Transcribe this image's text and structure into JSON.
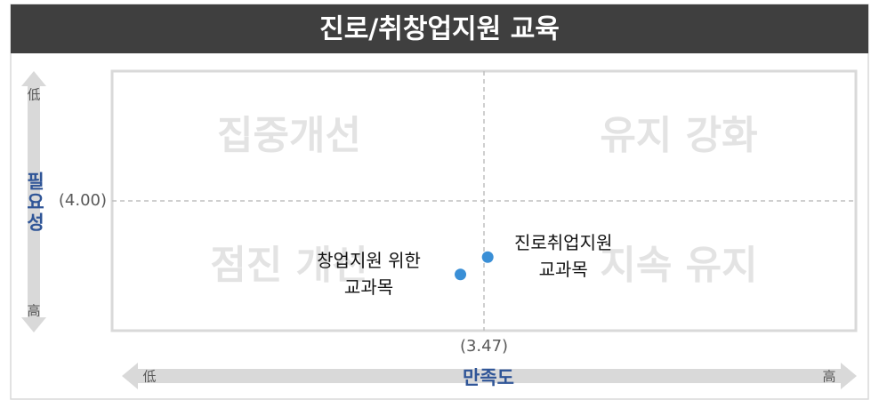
{
  "chart_data": {
    "type": "quadrant_scatter",
    "title": "진로/취창업지원 교육",
    "x_label": "만족도",
    "y_label": "필요성",
    "x_low": "低",
    "x_high": "高",
    "y_low": "低",
    "y_high": "高",
    "y_direction": "down",
    "xlim": [
      3.17,
      3.77
    ],
    "ylim": [
      3.7,
      4.3
    ],
    "x_ref": {
      "value": 3.47,
      "label": "(3.47)"
    },
    "y_ref": {
      "value": 4.0,
      "label": "(4.00)"
    },
    "quadrants": [
      {
        "name": "집중개선",
        "corner": "top-left"
      },
      {
        "name": "유지 강화",
        "corner": "top-right"
      },
      {
        "name": "점진 개선",
        "corner": "bottom-left"
      },
      {
        "name": "지속 유지",
        "corner": "bottom-right"
      }
    ],
    "color": "#3a8fd6",
    "points": [
      {
        "label_lines": [
          "진로취업지원",
          "교과목"
        ],
        "x": 3.473,
        "y": 4.13,
        "label_side": "right"
      },
      {
        "label_lines": [
          "창업지원 위한",
          "교과목"
        ],
        "x": 3.451,
        "y": 4.17,
        "label_side": "left"
      }
    ]
  }
}
